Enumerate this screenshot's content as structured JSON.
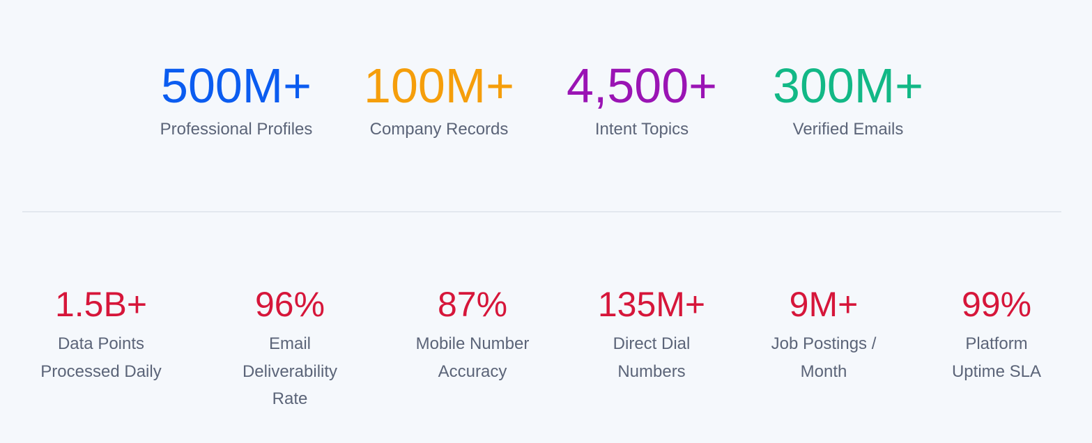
{
  "top_stats": [
    {
      "value": "500M+",
      "label": "Professional Profiles",
      "color": "#0b5cf0"
    },
    {
      "value": "100M+",
      "label": "Company Records",
      "color": "#f59e0b"
    },
    {
      "value": "4,500+",
      "label": "Intent Topics",
      "color": "#9a14b4"
    },
    {
      "value": "300M+",
      "label": "Verified Emails",
      "color": "#12b886"
    }
  ],
  "bottom_stats": {
    "color": "#d6163a",
    "items": [
      {
        "value": "1.5B+",
        "lines": [
          "Data Points",
          "Processed Daily"
        ]
      },
      {
        "value": "96%",
        "lines": [
          "Email",
          "Deliverability",
          "Rate"
        ]
      },
      {
        "value": "87%",
        "lines": [
          "Mobile Number",
          "Accuracy"
        ]
      },
      {
        "value": "135M+",
        "lines": [
          "Direct Dial",
          "Numbers"
        ]
      },
      {
        "value": "9M+",
        "lines": [
          "Job Postings /",
          "Month"
        ]
      },
      {
        "value": "99%",
        "lines": [
          "Platform",
          "Uptime SLA"
        ]
      }
    ]
  }
}
